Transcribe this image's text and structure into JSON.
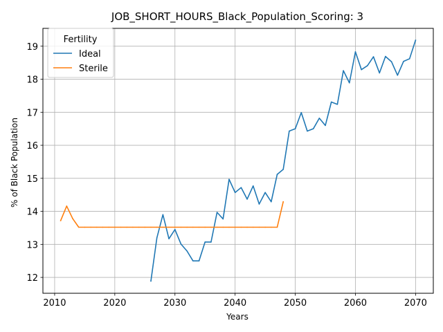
{
  "chart_data": {
    "type": "line",
    "title": "JOB_SHORT_HOURS_Black_Population_Scoring: 3",
    "xlabel": "Years",
    "ylabel": "% of Black Population",
    "xlim": [
      2008.05,
      2072.95
    ],
    "ylim": [
      11.52,
      19.54
    ],
    "xticks": [
      2010,
      2020,
      2030,
      2040,
      2050,
      2060,
      2070
    ],
    "yticks": [
      12,
      13,
      14,
      15,
      16,
      17,
      18,
      19
    ],
    "grid": true,
    "legend": {
      "title": "Fertility",
      "placement": "top-left"
    },
    "series": [
      {
        "name": "Ideal",
        "color": "#1f77b4",
        "x": [
          2026,
          2027,
          2028,
          2029,
          2030,
          2031,
          2032,
          2033,
          2034,
          2035,
          2036,
          2037,
          2038,
          2039,
          2040,
          2041,
          2042,
          2043,
          2044,
          2045,
          2046,
          2047,
          2048,
          2049,
          2050,
          2051,
          2052,
          2053,
          2054,
          2055,
          2056,
          2057,
          2058,
          2059,
          2060,
          2061,
          2062,
          2063,
          2064,
          2065,
          2066,
          2067,
          2068,
          2069,
          2070
        ],
        "y": [
          11.89,
          13.2,
          13.9,
          13.17,
          13.45,
          13.01,
          12.8,
          12.5,
          12.5,
          13.07,
          13.07,
          13.97,
          13.77,
          14.97,
          14.57,
          14.72,
          14.37,
          14.77,
          14.22,
          14.57,
          14.29,
          15.12,
          15.27,
          16.43,
          16.5,
          16.99,
          16.43,
          16.5,
          16.82,
          16.6,
          17.31,
          17.24,
          18.26,
          17.89,
          18.83,
          18.29,
          18.41,
          18.68,
          18.19,
          18.69,
          18.53,
          18.12,
          18.54,
          18.62,
          19.18
        ]
      },
      {
        "name": "Sterile",
        "color": "#ff7f0e",
        "x": [
          2011,
          2012,
          2013,
          2014,
          2015,
          2016,
          2017,
          2018,
          2019,
          2020,
          2021,
          2022,
          2023,
          2024,
          2025,
          2026,
          2027,
          2028,
          2029,
          2030,
          2031,
          2032,
          2033,
          2034,
          2035,
          2036,
          2037,
          2038,
          2039,
          2040,
          2041,
          2042,
          2043,
          2044,
          2045,
          2046,
          2047,
          2048
        ],
        "y": [
          13.72,
          14.16,
          13.78,
          13.52,
          13.52,
          13.52,
          13.52,
          13.52,
          13.52,
          13.52,
          13.52,
          13.52,
          13.52,
          13.52,
          13.52,
          13.52,
          13.52,
          13.52,
          13.52,
          13.52,
          13.52,
          13.52,
          13.52,
          13.52,
          13.52,
          13.52,
          13.52,
          13.52,
          13.52,
          13.52,
          13.52,
          13.52,
          13.52,
          13.52,
          13.52,
          13.52,
          13.52,
          14.29
        ]
      }
    ]
  }
}
